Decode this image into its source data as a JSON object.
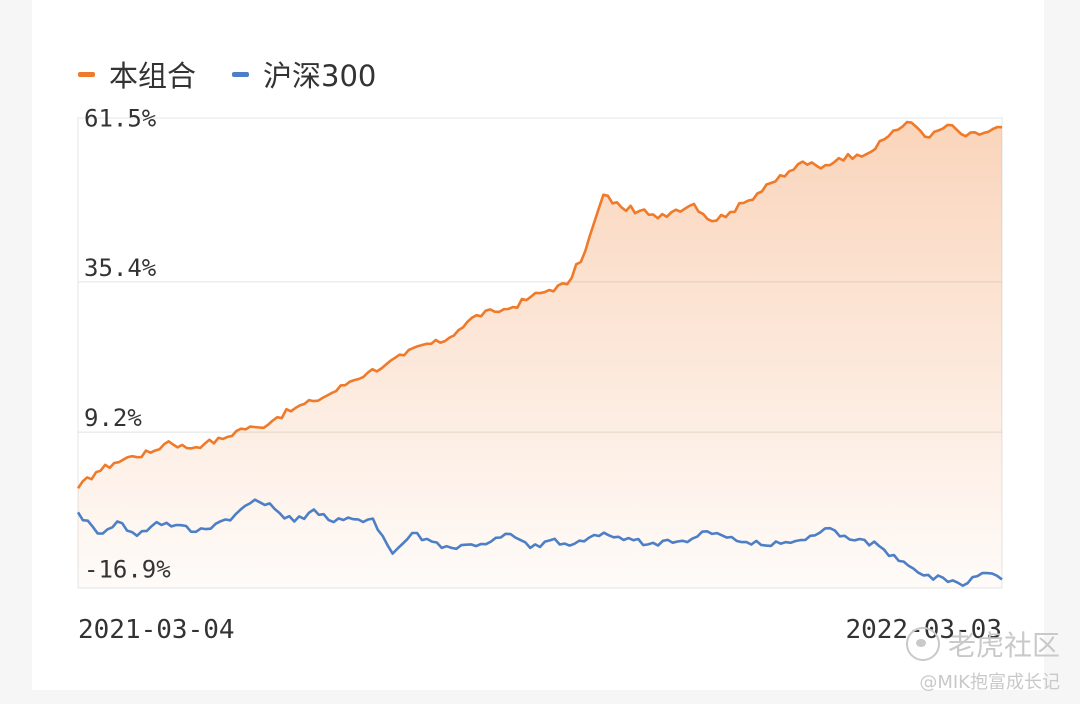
{
  "chart_data": {
    "type": "area",
    "legend_position": "top-left",
    "grid": true,
    "x_labels": [
      "2021-03-04",
      "2022-03-03"
    ],
    "y_ticks": [
      61.5,
      35.4,
      9.2,
      -16.9
    ],
    "y_tick_labels": [
      "61.5%",
      "35.4%",
      "9.2%",
      "-16.9%"
    ],
    "ylim": [
      -18.0,
      64.0
    ],
    "series": [
      {
        "name": "本组合",
        "color": "#ef7a2a",
        "fill": true,
        "start_date": "2021-03-04",
        "end_date": "2022-03-03",
        "values": [
          -0.6,
          2.2,
          3.8,
          5.0,
          5.6,
          7.6,
          6.4,
          7.2,
          8.0,
          9.8,
          10.0,
          11.8,
          13.4,
          14.6,
          16.0,
          18.0,
          19.6,
          21.0,
          22.6,
          24.4,
          24.8,
          27.0,
          29.6,
          30.2,
          31.0,
          32.8,
          34.0,
          35.0,
          40.8,
          50.6,
          48.4,
          47.8,
          46.5,
          48.0,
          49.0,
          46.0,
          47.6,
          49.6,
          52.4,
          53.8,
          56.4,
          55.2,
          57.0,
          57.6,
          58.6,
          61.8,
          63.2,
          60.6,
          62.8,
          60.8,
          61.4,
          62.4
        ]
      },
      {
        "name": "沪深300",
        "color": "#4d7fc6",
        "fill": false,
        "start_date": "2021-03-04",
        "end_date": "2022-03-03",
        "values": [
          -4.8,
          -8.5,
          -6.4,
          -8.9,
          -6.5,
          -7.0,
          -8.2,
          -6.8,
          -5.2,
          -2.6,
          -4.2,
          -6.4,
          -4.3,
          -6.5,
          -6.0,
          -5.9,
          -12.0,
          -8.4,
          -9.9,
          -11.0,
          -10.4,
          -9.9,
          -8.6,
          -11.0,
          -9.7,
          -10.6,
          -9.2,
          -8.8,
          -9.3,
          -10.4,
          -9.6,
          -10.0,
          -8.1,
          -9.2,
          -10.0,
          -10.6,
          -10.0,
          -9.6,
          -7.6,
          -8.9,
          -9.6,
          -11.3,
          -13.4,
          -15.8,
          -16.2,
          -17.6,
          -15.4,
          -16.5
        ]
      }
    ]
  },
  "watermark": {
    "line1": "老虎社区",
    "line2": "@MIK抱富成长记"
  }
}
